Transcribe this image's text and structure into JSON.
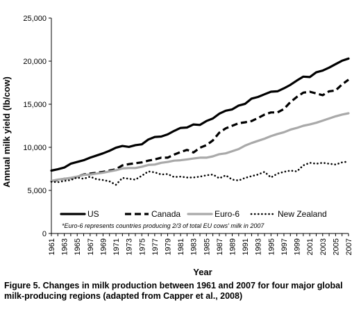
{
  "caption": "Figure 5. Changes in milk production between 1961 and 2007 for four major global milk-producing regions (adapted from Capper et al., 2008)",
  "chart_data": {
    "type": "line",
    "xlabel": "Year",
    "ylabel": "Annual milk yield (lb/cow)",
    "ylim": [
      0,
      25000
    ],
    "xlim": [
      1961,
      2007
    ],
    "yticks": [
      0,
      5000,
      10000,
      15000,
      20000,
      25000
    ],
    "ytick_labels": [
      "0",
      "5,000",
      "10,000",
      "15,000",
      "20,000",
      "25,000"
    ],
    "xtick_labels": [
      "1961",
      "1963",
      "1965",
      "1967",
      "1969",
      "1971",
      "1973",
      "1975",
      "1977",
      "1979",
      "1981",
      "1983",
      "1985",
      "1987",
      "1989",
      "1991",
      "1993",
      "1995",
      "1997",
      "1999",
      "2001",
      "2003",
      "2005",
      "2007"
    ],
    "grid": false,
    "legend_position": "bottom-inside",
    "note": "*Euro-6 represents countries producing 2/3 of total EU cows' milk in 2007",
    "x": [
      1961,
      1962,
      1963,
      1964,
      1965,
      1966,
      1967,
      1968,
      1969,
      1970,
      1971,
      1972,
      1973,
      1974,
      1975,
      1976,
      1977,
      1978,
      1979,
      1980,
      1981,
      1982,
      1983,
      1984,
      1985,
      1986,
      1987,
      1988,
      1989,
      1990,
      1991,
      1992,
      1993,
      1994,
      1995,
      1996,
      1997,
      1998,
      1999,
      2000,
      2001,
      2002,
      2003,
      2004,
      2005,
      2006,
      2007
    ],
    "series": [
      {
        "name": "US",
        "color": "#000000",
        "style": "solid",
        "values": [
          7300,
          7450,
          7650,
          8100,
          8300,
          8500,
          8800,
          9050,
          9300,
          9600,
          9950,
          10150,
          10050,
          10250,
          10350,
          10900,
          11200,
          11250,
          11500,
          11900,
          12250,
          12300,
          12650,
          12600,
          13050,
          13350,
          13900,
          14250,
          14400,
          14850,
          15050,
          15650,
          15850,
          16150,
          16450,
          16500,
          16850,
          17250,
          17750,
          18200,
          18150,
          18700,
          18900,
          19250,
          19650,
          20050,
          20300
        ]
      },
      {
        "name": "Canada",
        "color": "#000000",
        "style": "dashed",
        "values": [
          6100,
          6200,
          6350,
          6400,
          6600,
          6850,
          6950,
          7050,
          7150,
          7300,
          7450,
          7900,
          8050,
          8150,
          8250,
          8450,
          8600,
          8800,
          8800,
          9150,
          9450,
          9700,
          9400,
          9950,
          10250,
          10800,
          11700,
          12200,
          12500,
          12800,
          12900,
          13050,
          13400,
          13800,
          14050,
          14050,
          14450,
          15250,
          15850,
          16350,
          16450,
          16250,
          16050,
          16500,
          16600,
          17300,
          17850
        ]
      },
      {
        "name": "Euro-6",
        "color": "#a9a9a9",
        "style": "solid",
        "values": [
          6100,
          6250,
          6350,
          6450,
          6600,
          6800,
          6850,
          6950,
          7050,
          7200,
          7350,
          7550,
          7600,
          7600,
          7750,
          7950,
          8000,
          8200,
          8300,
          8450,
          8500,
          8600,
          8700,
          8800,
          8800,
          8950,
          9200,
          9300,
          9550,
          9800,
          10200,
          10500,
          10750,
          11000,
          11300,
          11550,
          11750,
          12050,
          12250,
          12500,
          12650,
          12850,
          13100,
          13350,
          13600,
          13800,
          13950
        ]
      },
      {
        "name": "New Zealand",
        "color": "#000000",
        "style": "dotted",
        "values": [
          6000,
          5950,
          6100,
          6200,
          6500,
          6350,
          6600,
          6300,
          6200,
          6050,
          5650,
          6450,
          6350,
          6250,
          6700,
          7200,
          7100,
          6850,
          6900,
          6550,
          6600,
          6500,
          6500,
          6600,
          6750,
          6850,
          6400,
          6750,
          6250,
          6150,
          6450,
          6650,
          6850,
          7150,
          6500,
          6950,
          7150,
          7300,
          7200,
          7900,
          8200,
          8100,
          8200,
          8100,
          8000,
          8250,
          8350
        ]
      }
    ]
  }
}
